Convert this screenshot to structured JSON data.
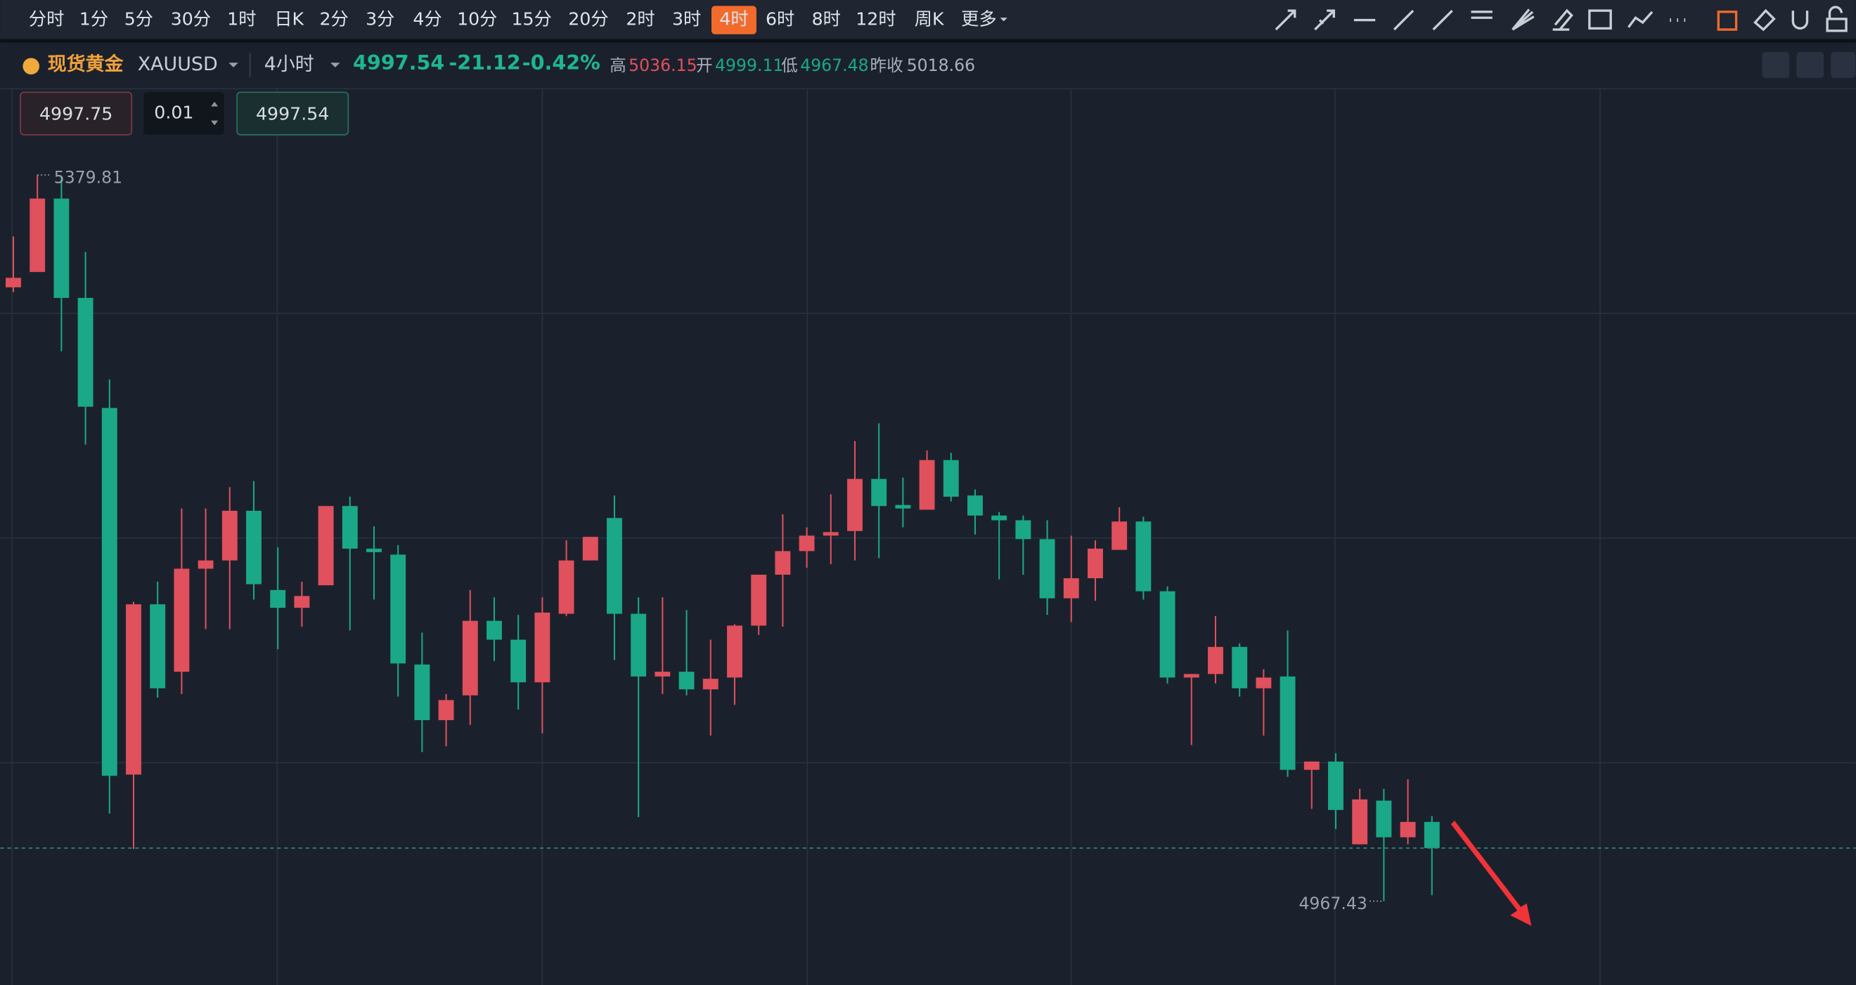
{
  "toolbar": {
    "intervals": [
      "分时",
      "1分",
      "5分",
      "30分",
      "1时",
      "日K",
      "2分",
      "3分",
      "4分",
      "10分",
      "15分",
      "20分",
      "2时",
      "3时",
      "4时",
      "6时",
      "8时",
      "12时",
      "周K"
    ],
    "active": 14,
    "more": "更多"
  },
  "symbol": {
    "name": "现货黄金",
    "code": "XAUUSD",
    "interval": "4小时",
    "price": "4997.54",
    "change": "-21.12",
    "change_pct": "-0.42%",
    "high_label": "高",
    "high": "5036.15",
    "open_label": "开",
    "open": "4999.11",
    "low_label": "低",
    "low": "4967.48",
    "prev_label": "昨收",
    "prev": "5018.66"
  },
  "order": {
    "sell": "4997.75",
    "qty": "0.01",
    "buy": "4997.54"
  },
  "chart_data": {
    "type": "candlestick",
    "open": [
      5316.0,
      5324.7,
      5366.4,
      5310.0,
      5247.5,
      5039.3,
      5136.0,
      5097.7,
      5156.2,
      5160.9,
      5189.1,
      5144.1,
      5134.0,
      5146.8,
      5191.8,
      5167.6,
      5164.2,
      5101.8,
      5070.2,
      5084.3,
      5126.6,
      5115.9,
      5091.7,
      5130.6,
      5160.9,
      5185.0,
      5130.6,
      5095.0,
      5097.7,
      5087.7,
      5094.4,
      5123.9,
      5152.8,
      5166.2,
      5175.0,
      5177.6,
      5207.2,
      5192.4,
      5189.7,
      5217.9,
      5197.8,
      5186.4,
      5183.7,
      5173.0,
      5139.4,
      5150.8,
      5166.9,
      5183.0,
      5143.4,
      5094.4,
      5096.4,
      5111.8,
      5088.3,
      5095.0,
      5042.0,
      5046.7,
      4999.7,
      5024.5,
      5003.7,
      5012.4
    ],
    "high": [
      5344.9,
      5379.81,
      5378.5,
      5336.1,
      5263.6,
      5137.4,
      5148.8,
      5190.4,
      5190.4,
      5202.5,
      5205.9,
      5168.3,
      5148.8,
      5191.8,
      5197.1,
      5180.3,
      5169.6,
      5119.9,
      5085.0,
      5144.1,
      5140.0,
      5130.0,
      5140.0,
      5172.3,
      5174.3,
      5197.8,
      5140.0,
      5140.0,
      5132.7,
      5115.9,
      5124.6,
      5152.8,
      5187.1,
      5179.7,
      5198.5,
      5228.7,
      5238.8,
      5207.9,
      5223.3,
      5222.0,
      5201.2,
      5188.4,
      5186.4,
      5183.7,
      5175.0,
      5172.3,
      5191.1,
      5185.7,
      5146.1,
      5096.4,
      5129.3,
      5113.8,
      5099.1,
      5121.2,
      5046.7,
      5051.4,
      5031.2,
      5031.2,
      5036.6,
      5015.8
    ],
    "low": [
      5313.3,
      5324.7,
      5279.7,
      5226.7,
      5017.1,
      4997.0,
      5083.0,
      5085.0,
      5121.9,
      5121.9,
      5138.7,
      5110.5,
      5123.3,
      5146.8,
      5121.2,
      5138.7,
      5083.6,
      5052.1,
      5055.4,
      5067.5,
      5103.8,
      5076.2,
      5062.8,
      5129.3,
      5160.9,
      5104.4,
      5015.1,
      5085.0,
      5084.3,
      5061.5,
      5078.9,
      5118.6,
      5123.3,
      5156.8,
      5158.8,
      5160.9,
      5162.2,
      5179.7,
      5189.7,
      5194.4,
      5175.6,
      5150.1,
      5152.8,
      5130.0,
      5125.9,
      5138.0,
      5166.9,
      5138.7,
      5091.0,
      5056.1,
      5091.0,
      5083.6,
      5061.5,
      5038.0,
      5019.8,
      5008.4,
      4999.7,
      4967.43,
      4999.7,
      4970.8
    ],
    "close": [
      5321.4,
      5366.4,
      5310.0,
      5248.2,
      5038.6,
      5136.0,
      5088.3,
      5156.2,
      5160.9,
      5189.1,
      5147.4,
      5134.0,
      5140.7,
      5191.8,
      5167.6,
      5165.6,
      5102.4,
      5070.2,
      5081.6,
      5126.6,
      5115.9,
      5091.7,
      5131.3,
      5160.9,
      5174.3,
      5130.6,
      5095.0,
      5097.7,
      5087.7,
      5093.7,
      5123.9,
      5152.8,
      5166.2,
      5175.0,
      5177.0,
      5207.2,
      5191.8,
      5190.4,
      5217.9,
      5197.1,
      5186.4,
      5183.7,
      5173.0,
      5139.4,
      5150.8,
      5167.6,
      5183.0,
      5143.4,
      5094.4,
      5096.4,
      5111.8,
      5088.3,
      5094.4,
      5042.0,
      5046.7,
      5019.2,
      5025.2,
      5003.7,
      5012.4,
      4997.54
    ],
    "ylim": [
      4919.8,
      5428.8
    ],
    "max_mark": 5379.81,
    "min_mark": 4967.43,
    "last_price": 4997.54,
    "up_color": "#e0505d",
    "down_color": "#1aa888",
    "grid": true
  }
}
